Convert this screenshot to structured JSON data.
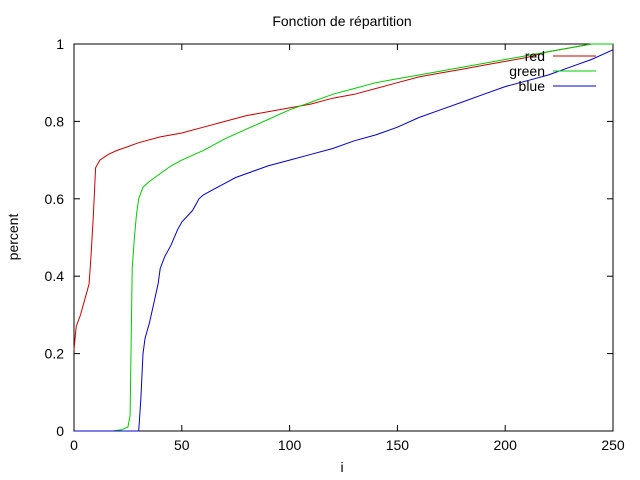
{
  "chart_data": {
    "type": "line",
    "title": "Fonction de répartition",
    "xlabel": "i",
    "ylabel": "percent",
    "xlim": [
      0,
      250
    ],
    "ylim": [
      0,
      1
    ],
    "x_ticks": [
      0,
      50,
      100,
      150,
      200,
      250
    ],
    "y_ticks": [
      0,
      0.2,
      0.4,
      0.6,
      0.8,
      1
    ],
    "y_tick_labels": [
      "0",
      "0.2",
      "0.4",
      "0.6",
      "0.8",
      "1"
    ],
    "grid": false,
    "legend_position": "top-right",
    "series": [
      {
        "name": "red",
        "color": "#cc0000",
        "points": [
          [
            0,
            0.21
          ],
          [
            1,
            0.27
          ],
          [
            3,
            0.3
          ],
          [
            5,
            0.34
          ],
          [
            7,
            0.38
          ],
          [
            8,
            0.46
          ],
          [
            9,
            0.56
          ],
          [
            10,
            0.68
          ],
          [
            12,
            0.7
          ],
          [
            16,
            0.715
          ],
          [
            20,
            0.725
          ],
          [
            25,
            0.735
          ],
          [
            30,
            0.745
          ],
          [
            40,
            0.76
          ],
          [
            50,
            0.77
          ],
          [
            60,
            0.785
          ],
          [
            70,
            0.8
          ],
          [
            80,
            0.815
          ],
          [
            90,
            0.825
          ],
          [
            100,
            0.835
          ],
          [
            110,
            0.845
          ],
          [
            120,
            0.86
          ],
          [
            130,
            0.87
          ],
          [
            140,
            0.885
          ],
          [
            150,
            0.9
          ],
          [
            160,
            0.915
          ],
          [
            170,
            0.925
          ],
          [
            180,
            0.935
          ],
          [
            190,
            0.945
          ],
          [
            200,
            0.955
          ],
          [
            210,
            0.965
          ],
          [
            220,
            0.98
          ],
          [
            230,
            0.99
          ],
          [
            240,
            1.0
          ],
          [
            250,
            1.0
          ]
        ]
      },
      {
        "name": "green",
        "color": "#00cc00",
        "points": [
          [
            0,
            0.0
          ],
          [
            18,
            0.0
          ],
          [
            22,
            0.003
          ],
          [
            25,
            0.01
          ],
          [
            26,
            0.04
          ],
          [
            27,
            0.42
          ],
          [
            28,
            0.5
          ],
          [
            29,
            0.56
          ],
          [
            30,
            0.6
          ],
          [
            32,
            0.63
          ],
          [
            35,
            0.645
          ],
          [
            40,
            0.665
          ],
          [
            45,
            0.685
          ],
          [
            50,
            0.7
          ],
          [
            60,
            0.725
          ],
          [
            70,
            0.755
          ],
          [
            80,
            0.78
          ],
          [
            90,
            0.805
          ],
          [
            100,
            0.83
          ],
          [
            110,
            0.85
          ],
          [
            120,
            0.87
          ],
          [
            130,
            0.885
          ],
          [
            140,
            0.9
          ],
          [
            150,
            0.91
          ],
          [
            160,
            0.92
          ],
          [
            170,
            0.93
          ],
          [
            180,
            0.94
          ],
          [
            190,
            0.95
          ],
          [
            200,
            0.96
          ],
          [
            210,
            0.97
          ],
          [
            220,
            0.98
          ],
          [
            230,
            0.99
          ],
          [
            240,
            1.0
          ],
          [
            250,
            1.0
          ]
        ]
      },
      {
        "name": "blue",
        "color": "#0000cc",
        "points": [
          [
            0,
            0.0
          ],
          [
            30,
            0.0
          ],
          [
            31,
            0.08
          ],
          [
            32,
            0.2
          ],
          [
            33,
            0.24
          ],
          [
            35,
            0.28
          ],
          [
            37,
            0.33
          ],
          [
            39,
            0.38
          ],
          [
            40,
            0.42
          ],
          [
            42,
            0.45
          ],
          [
            45,
            0.48
          ],
          [
            48,
            0.52
          ],
          [
            50,
            0.54
          ],
          [
            55,
            0.57
          ],
          [
            58,
            0.6
          ],
          [
            60,
            0.61
          ],
          [
            65,
            0.625
          ],
          [
            70,
            0.64
          ],
          [
            75,
            0.655
          ],
          [
            80,
            0.665
          ],
          [
            90,
            0.685
          ],
          [
            100,
            0.7
          ],
          [
            110,
            0.715
          ],
          [
            120,
            0.73
          ],
          [
            130,
            0.75
          ],
          [
            140,
            0.765
          ],
          [
            150,
            0.785
          ],
          [
            160,
            0.81
          ],
          [
            170,
            0.83
          ],
          [
            180,
            0.85
          ],
          [
            190,
            0.87
          ],
          [
            200,
            0.89
          ],
          [
            210,
            0.905
          ],
          [
            220,
            0.92
          ],
          [
            230,
            0.94
          ],
          [
            240,
            0.96
          ],
          [
            250,
            0.985
          ]
        ]
      }
    ]
  }
}
